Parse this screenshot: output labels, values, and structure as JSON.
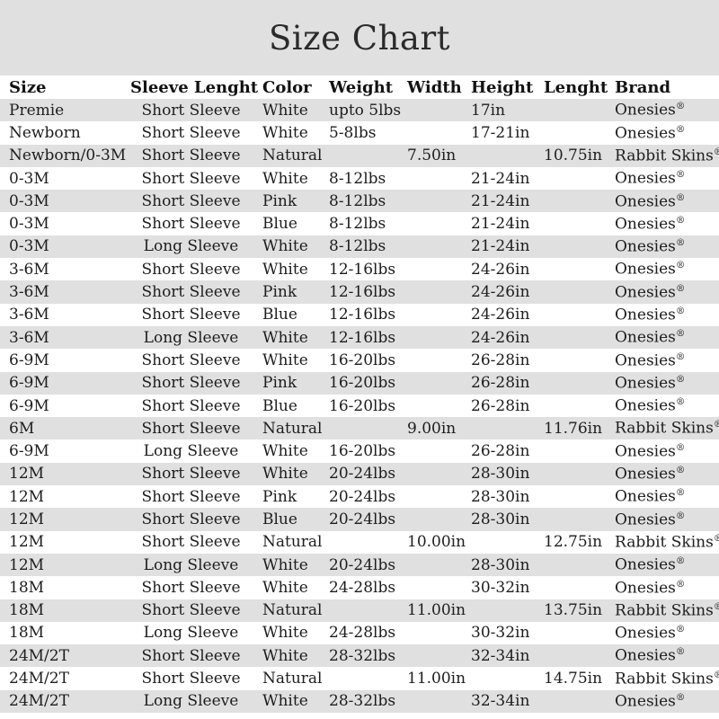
{
  "title": "Size Chart",
  "colors": {
    "stripe": "#e0e0e0",
    "background": "#ffffff",
    "text": "#1d1d1d",
    "title_text": "#2b2b2b"
  },
  "chart_data": {
    "type": "table",
    "title": "Size Chart",
    "columns": [
      "Size",
      "Sleeve Lenght",
      "Color",
      "Weight",
      "Width",
      "Height",
      "Lenght",
      "Brand"
    ],
    "column_keys": [
      "size",
      "sleeve-length",
      "color",
      "weight",
      "width",
      "height",
      "length",
      "brand"
    ],
    "rows": [
      [
        "Premie",
        "Short Sleeve",
        "White",
        "upto 5lbs",
        "",
        "17in",
        "",
        "Onesies®"
      ],
      [
        "Newborn",
        "Short Sleeve",
        "White",
        "5-8lbs",
        "",
        "17-21in",
        "",
        "Onesies®"
      ],
      [
        "Newborn/0-3M",
        "Short Sleeve",
        "Natural",
        "",
        "7.50in",
        "",
        "10.75in",
        "Rabbit Skins®"
      ],
      [
        "0-3M",
        "Short Sleeve",
        "White",
        "8-12lbs",
        "",
        "21-24in",
        "",
        "Onesies®"
      ],
      [
        "0-3M",
        "Short Sleeve",
        "Pink",
        "8-12lbs",
        "",
        "21-24in",
        "",
        "Onesies®"
      ],
      [
        "0-3M",
        "Short Sleeve",
        "Blue",
        "8-12lbs",
        "",
        "21-24in",
        "",
        "Onesies®"
      ],
      [
        "0-3M",
        "Long Sleeve",
        "White",
        "8-12lbs",
        "",
        "21-24in",
        "",
        "Onesies®"
      ],
      [
        "3-6M",
        "Short Sleeve",
        "White",
        "12-16lbs",
        "",
        "24-26in",
        "",
        "Onesies®"
      ],
      [
        "3-6M",
        "Short Sleeve",
        "Pink",
        "12-16lbs",
        "",
        "24-26in",
        "",
        "Onesies®"
      ],
      [
        "3-6M",
        "Short Sleeve",
        "Blue",
        "12-16lbs",
        "",
        "24-26in",
        "",
        "Onesies®"
      ],
      [
        "3-6M",
        "Long Sleeve",
        "White",
        "12-16lbs",
        "",
        "24-26in",
        "",
        "Onesies®"
      ],
      [
        "6-9M",
        "Short Sleeve",
        "White",
        "16-20lbs",
        "",
        "26-28in",
        "",
        "Onesies®"
      ],
      [
        "6-9M",
        "Short Sleeve",
        "Pink",
        "16-20lbs",
        "",
        "26-28in",
        "",
        "Onesies®"
      ],
      [
        "6-9M",
        "Short Sleeve",
        "Blue",
        "16-20lbs",
        "",
        "26-28in",
        "",
        "Onesies®"
      ],
      [
        "6M",
        "Short Sleeve",
        "Natural",
        "",
        "9.00in",
        "",
        "11.76in",
        "Rabbit Skins®"
      ],
      [
        "6-9M",
        "Long Sleeve",
        "White",
        "16-20lbs",
        "",
        "26-28in",
        "",
        "Onesies®"
      ],
      [
        "12M",
        "Short Sleeve",
        "White",
        "20-24lbs",
        "",
        "28-30in",
        "",
        "Onesies®"
      ],
      [
        "12M",
        "Short Sleeve",
        "Pink",
        "20-24lbs",
        "",
        "28-30in",
        "",
        "Onesies®"
      ],
      [
        "12M",
        "Short Sleeve",
        "Blue",
        "20-24lbs",
        "",
        "28-30in",
        "",
        "Onesies®"
      ],
      [
        "12M",
        "Short Sleeve",
        "Natural",
        "",
        "10.00in",
        "",
        "12.75in",
        "Rabbit Skins®"
      ],
      [
        "12M",
        "Long Sleeve",
        "White",
        "20-24lbs",
        "",
        "28-30in",
        "",
        "Onesies®"
      ],
      [
        "18M",
        "Short Sleeve",
        "White",
        "24-28lbs",
        "",
        "30-32in",
        "",
        "Onesies®"
      ],
      [
        "18M",
        "Short Sleeve",
        "Natural",
        "",
        "11.00in",
        "",
        "13.75in",
        "Rabbit Skins®"
      ],
      [
        "18M",
        "Long Sleeve",
        "White",
        "24-28lbs",
        "",
        "30-32in",
        "",
        "Onesies®"
      ],
      [
        "24M/2T",
        "Short Sleeve",
        "White",
        "28-32lbs",
        "",
        "32-34in",
        "",
        "Onesies®"
      ],
      [
        "24M/2T",
        "Short Sleeve",
        "Natural",
        "",
        "11.00in",
        "",
        "14.75in",
        "Rabbit Skins®"
      ],
      [
        "24M/2T",
        "Long Sleeve",
        "White",
        "28-32lbs",
        "",
        "32-34in",
        "",
        "Onesies®"
      ]
    ]
  }
}
